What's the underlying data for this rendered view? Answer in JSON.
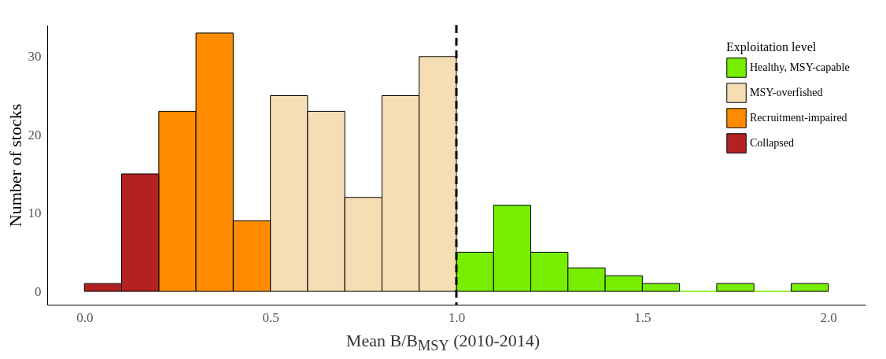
{
  "chart_data": {
    "type": "histogram",
    "xlabel": "Mean B/B$_{MSY}$ (2010-2014)",
    "ylabel": "Number of stocks",
    "legend_title": "Exploitation level",
    "legend": "top right",
    "bins": [
      0.0,
      0.1,
      0.2,
      0.3,
      0.4,
      0.5,
      0.6,
      0.7,
      0.8,
      0.9,
      1.0,
      1.1,
      1.2,
      1.3,
      1.4,
      1.5,
      1.6,
      1.7,
      1.8,
      1.9,
      2.0
    ],
    "series": [
      {
        "name": "Healthy, MSY-capable",
        "color": "#77ee00",
        "values": [
          null,
          null,
          null,
          null,
          null,
          null,
          null,
          null,
          null,
          null,
          5,
          11,
          5,
          3,
          2,
          1,
          0,
          1,
          0,
          1
        ]
      },
      {
        "name": "MSY-overfished",
        "color": "#f5deb3",
        "values": [
          null,
          null,
          null,
          null,
          null,
          25,
          23,
          12,
          25,
          30,
          null,
          null,
          null,
          null,
          null,
          null,
          null,
          null,
          null,
          null
        ]
      },
      {
        "name": "Recruitment-impaired",
        "color": "#ff8c00",
        "values": [
          null,
          null,
          23,
          33,
          9,
          null,
          null,
          null,
          null,
          null,
          null,
          null,
          null,
          null,
          null,
          null,
          null,
          null,
          null,
          null
        ]
      },
      {
        "name": "Collapsed",
        "color": "#b22222",
        "values": [
          1,
          15,
          null,
          null,
          null,
          null,
          null,
          null,
          null,
          null,
          null,
          null,
          null,
          null,
          null,
          null,
          null,
          null,
          null,
          null
        ]
      }
    ],
    "xlim": [
      -0.1,
      2.1
    ],
    "ylim": [
      -1.7,
      34
    ],
    "xticks": [
      {
        "value": 0,
        "label": "0.0"
      },
      {
        "value": 0.5,
        "label": "0.5"
      },
      {
        "value": 1,
        "label": "1.0"
      },
      {
        "value": 1.5,
        "label": "1.5"
      },
      {
        "value": 2,
        "label": "2.0"
      }
    ],
    "yticks": [
      0,
      10,
      20,
      30
    ],
    "ref_lines": [
      {
        "axis": "x",
        "value": 1.0,
        "line_style": "dashed",
        "color": "#000000"
      }
    ]
  }
}
